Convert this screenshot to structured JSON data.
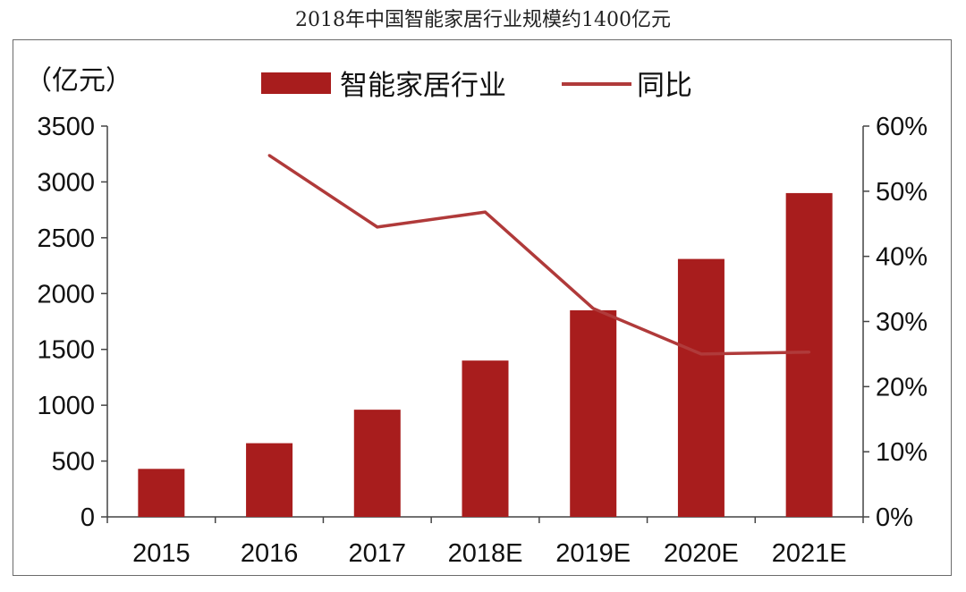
{
  "chart_data": {
    "type": "bar",
    "title": "2018年中国智能家居行业规模约1400亿元",
    "categories": [
      "2015",
      "2016",
      "2017",
      "2018E",
      "2019E",
      "2020E",
      "2021E"
    ],
    "series": [
      {
        "name": "智能家居行业",
        "type": "bar",
        "axis": "left",
        "values": [
          430,
          660,
          960,
          1400,
          1850,
          2310,
          2900
        ]
      },
      {
        "name": "同比",
        "type": "line",
        "axis": "right",
        "values": [
          null,
          55.5,
          44.5,
          46.8,
          32.0,
          25.0,
          25.3
        ]
      }
    ],
    "y_left": {
      "label": "（亿元）",
      "ylim": [
        0,
        3500
      ],
      "ticks": [
        "0",
        "500",
        "1000",
        "1500",
        "2000",
        "2500",
        "3000",
        "3500"
      ]
    },
    "y_right": {
      "ylim": [
        0,
        60
      ],
      "ticks": [
        "0%",
        "10%",
        "20%",
        "30%",
        "40%",
        "50%",
        "60%"
      ]
    },
    "legend_position": "top-center",
    "grid": false,
    "colors": {
      "bar": "#a81d1d",
      "line": "#b03a3a",
      "axis": "#444444"
    }
  }
}
